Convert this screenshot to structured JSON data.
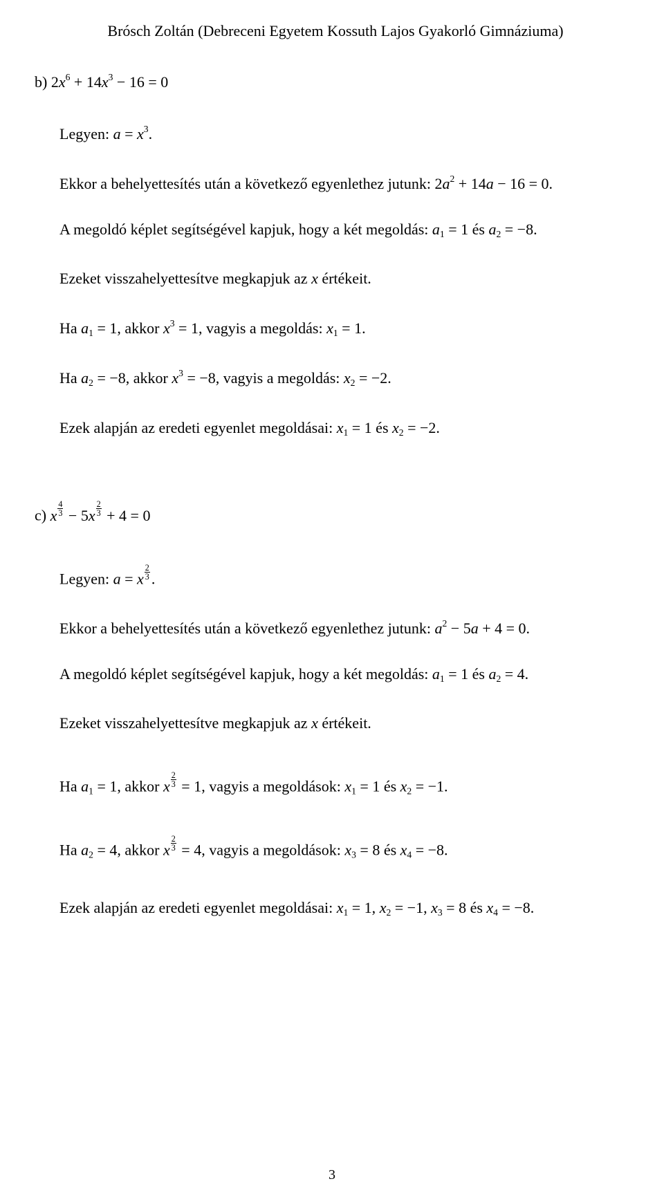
{
  "header": "Brósch Zoltán (Debreceni Egyetem Kossuth Lajos Gyakorló Gimnáziuma)",
  "page_number": "3",
  "b": {
    "problem_prefix": "b) ",
    "equation": "2<span class='mi'>x</span><span class='sup'>6</span> + 14<span class='mi'>x</span><span class='sup'>3</span> − 16 = 0",
    "let": "Legyen: <span class='mi'>a</span> = <span class='mi'>x</span><span class='sup'>3</span>.",
    "subst": "Ekkor a behelyettesítés után a következő egyenlethez jutunk: 2<span class='mi'>a</span><span class='sup'>2</span> + 14<span class='mi'>a</span> − 16 = 0.",
    "quad": "A megoldó képlet segítségével kapjuk, hogy a két megoldás: <span class='mi'>a</span><span class='sub'>1</span> = 1 és <span class='mi'>a</span><span class='sub'>2</span> = −8.",
    "back": "Ezeket visszahelyettesítve megkapjuk az <span class='mi'>x</span> értékeit.",
    "case1": "Ha <span class='mi'>a</span><span class='sub'>1</span> = 1, akkor <span class='mi'>x</span><span class='sup'>3</span> = 1, vagyis a megoldás: <span class='mi'>x</span><span class='sub'>1</span> = 1.",
    "case2": "Ha <span class='mi'>a</span><span class='sub'>2</span> = −8, akkor <span class='mi'>x</span><span class='sup'>3</span> = −8, vagyis a megoldás: <span class='mi'>x</span><span class='sub'>2</span> = −2.",
    "concl": "Ezek alapján az eredeti egyenlet megoldásai: <span class='mi'>x</span><span class='sub'>1</span> = 1 és <span class='mi'>x</span><span class='sub'>2</span> = −2."
  },
  "c": {
    "problem_prefix": "c)  ",
    "equation": "<span class='mi'>x</span><span class='frac-sup'><span class='num'>4</span><span class='den'>3</span></span> − 5<span class='mi'>x</span><span class='frac-sup'><span class='num'>2</span><span class='den'>3</span></span> + 4 = 0",
    "let": "Legyen: <span class='mi'>a</span> = <span class='mi'>x</span><span class='frac-sup'><span class='num'>2</span><span class='den'>3</span></span>.",
    "subst": "Ekkor a behelyettesítés után a következő egyenlethez jutunk: <span class='mi'>a</span><span class='sup'>2</span> − 5<span class='mi'>a</span> + 4 = 0.",
    "quad": "A megoldó képlet segítségével kapjuk, hogy a két megoldás: <span class='mi'>a</span><span class='sub'>1</span> = 1 és <span class='mi'>a</span><span class='sub'>2</span> = 4.",
    "back": "Ezeket visszahelyettesítve megkapjuk az <span class='mi'>x</span> értékeit.",
    "case1": "Ha <span class='mi'>a</span><span class='sub'>1</span> = 1, akkor <span class='mi'>x</span><span class='frac-sup'><span class='num'>2</span><span class='den'>3</span></span> = 1, vagyis a megoldások: <span class='mi'>x</span><span class='sub'>1</span> = 1 és <span class='mi'>x</span><span class='sub'>2</span> = −1.",
    "case2": "Ha <span class='mi'>a</span><span class='sub'>2</span> = 4, akkor <span class='mi'>x</span><span class='frac-sup'><span class='num'>2</span><span class='den'>3</span></span> = 4, vagyis a megoldások: <span class='mi'>x</span><span class='sub'>3</span> = 8 és <span class='mi'>x</span><span class='sub'>4</span> = −8.",
    "concl": "Ezek alapján az eredeti egyenlet megoldásai: <span class='mi'>x</span><span class='sub'>1</span> = 1, <span class='mi'>x</span><span class='sub'>2</span> = −1, <span class='mi'>x</span><span class='sub'>3</span> = 8 és <span class='mi'>x</span><span class='sub'>4</span> = −8."
  }
}
